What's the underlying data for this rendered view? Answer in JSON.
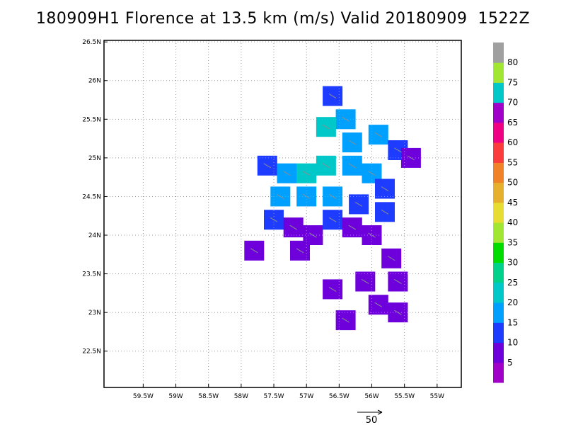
{
  "title": "180909H1 Florence at 13.5 km (m/s) Valid 20180909  1522Z",
  "chart_data": {
    "type": "heatmap",
    "title": "180909H1 Florence at 13.5 km (m/s) Valid 20180909  1522Z",
    "x_ticks": [
      "59.5W",
      "59W",
      "58.5W",
      "58W",
      "57.5W",
      "57W",
      "56.5W",
      "56W",
      "55.5W",
      "55W"
    ],
    "x_tick_values": [
      -59.5,
      -59,
      -58.5,
      -58,
      -57.5,
      -57,
      -56.5,
      -56,
      -55.5,
      -55
    ],
    "y_ticks": [
      "26.5N",
      "26N",
      "25.5N",
      "25N",
      "24.5N",
      "24N",
      "23.5N",
      "23N",
      "22.5N"
    ],
    "y_tick_values": [
      26.5,
      26,
      25.5,
      25,
      24.5,
      24,
      23.5,
      23,
      22.5
    ],
    "xlim": [
      -60.1,
      -54.63
    ],
    "ylim": [
      22.03,
      26.52
    ],
    "grid": true,
    "colorbar": {
      "labels": [
        "5",
        "10",
        "15",
        "20",
        "25",
        "30",
        "35",
        "40",
        "45",
        "50",
        "55",
        "60",
        "65",
        "70",
        "75",
        "80"
      ],
      "colors": [
        "#a000c8",
        "#6e00dc",
        "#1e3cff",
        "#00a0ff",
        "#00c8c8",
        "#00d28c",
        "#00dc00",
        "#a0e632",
        "#e6dc32",
        "#e6af2d",
        "#f08228",
        "#fa3c3c",
        "#f00082",
        "#a000c8",
        "#00c8c8",
        "#a0e632",
        "#a0a0a0"
      ]
    },
    "vector_scale": {
      "label": "50",
      "units": "m/s"
    },
    "cells": [
      {
        "lon": -56.6,
        "lat": 25.8,
        "level": 2
      },
      {
        "lon": -56.4,
        "lat": 25.5,
        "level": 3
      },
      {
        "lon": -56.7,
        "lat": 25.4,
        "level": 4
      },
      {
        "lon": -56.3,
        "lat": 25.2,
        "level": 3
      },
      {
        "lon": -55.9,
        "lat": 25.3,
        "level": 3
      },
      {
        "lon": -55.6,
        "lat": 25.1,
        "level": 2
      },
      {
        "lon": -55.4,
        "lat": 25.0,
        "level": 1
      },
      {
        "lon": -57.6,
        "lat": 24.9,
        "level": 2
      },
      {
        "lon": -57.3,
        "lat": 24.8,
        "level": 3
      },
      {
        "lon": -57.0,
        "lat": 24.8,
        "level": 4
      },
      {
        "lon": -56.7,
        "lat": 24.9,
        "level": 4
      },
      {
        "lon": -56.3,
        "lat": 24.9,
        "level": 3
      },
      {
        "lon": -56.0,
        "lat": 24.8,
        "level": 3
      },
      {
        "lon": -55.8,
        "lat": 24.6,
        "level": 2
      },
      {
        "lon": -57.4,
        "lat": 24.5,
        "level": 3
      },
      {
        "lon": -57.0,
        "lat": 24.5,
        "level": 3
      },
      {
        "lon": -56.6,
        "lat": 24.5,
        "level": 3
      },
      {
        "lon": -56.2,
        "lat": 24.4,
        "level": 2
      },
      {
        "lon": -55.8,
        "lat": 24.3,
        "level": 2
      },
      {
        "lon": -57.5,
        "lat": 24.2,
        "level": 2
      },
      {
        "lon": -57.2,
        "lat": 24.1,
        "level": 1
      },
      {
        "lon": -56.9,
        "lat": 24.0,
        "level": 1
      },
      {
        "lon": -56.6,
        "lat": 24.2,
        "level": 2
      },
      {
        "lon": -56.3,
        "lat": 24.1,
        "level": 1
      },
      {
        "lon": -56.0,
        "lat": 24.0,
        "level": 1
      },
      {
        "lon": -57.8,
        "lat": 23.8,
        "level": 1
      },
      {
        "lon": -57.1,
        "lat": 23.8,
        "level": 1
      },
      {
        "lon": -55.7,
        "lat": 23.7,
        "level": 1
      },
      {
        "lon": -55.6,
        "lat": 23.4,
        "level": 1
      },
      {
        "lon": -56.1,
        "lat": 23.4,
        "level": 1
      },
      {
        "lon": -56.6,
        "lat": 23.3,
        "level": 1
      },
      {
        "lon": -55.9,
        "lat": 23.1,
        "level": 1
      },
      {
        "lon": -55.6,
        "lat": 23.0,
        "level": 1
      },
      {
        "lon": -56.4,
        "lat": 22.9,
        "level": 1
      }
    ]
  }
}
